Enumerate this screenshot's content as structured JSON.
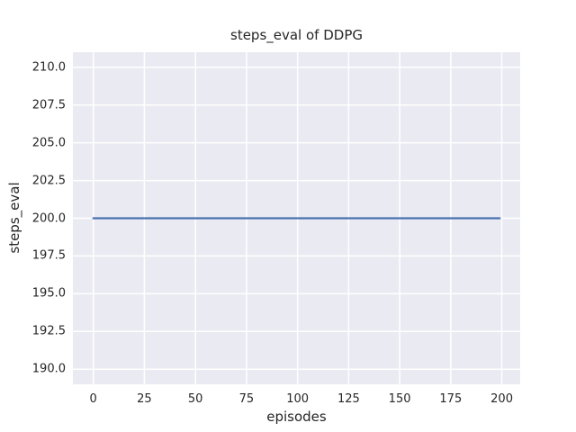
{
  "figure": {
    "title": "steps_eval of DDPG",
    "xlabel": "episodes",
    "ylabel": "steps_eval"
  },
  "chart_data": {
    "type": "line",
    "title": "steps_eval of DDPG",
    "xlabel": "episodes",
    "ylabel": "steps_eval",
    "xlim": [
      -10,
      209
    ],
    "ylim": [
      189,
      211
    ],
    "xticks": {
      "values": [
        0,
        25,
        50,
        75,
        100,
        125,
        150,
        175,
        200
      ],
      "labels": [
        "0",
        "25",
        "50",
        "75",
        "100",
        "125",
        "150",
        "175",
        "200"
      ]
    },
    "yticks": {
      "values": [
        190.0,
        192.5,
        195.0,
        197.5,
        200.0,
        202.5,
        205.0,
        207.5,
        210.0
      ],
      "labels": [
        "190.0",
        "192.5",
        "195.0",
        "197.5",
        "200.0",
        "202.5",
        "205.0",
        "207.5",
        "210.0"
      ]
    },
    "grid": true,
    "legend": false,
    "plot_bg_color": "#eaeaf2",
    "grid_color": "#ffffff",
    "text_color": "#262626",
    "series": [
      {
        "name": "DDPG",
        "color": "#4c72b0",
        "x": [
          0,
          199
        ],
        "y": [
          200,
          200
        ]
      }
    ]
  }
}
